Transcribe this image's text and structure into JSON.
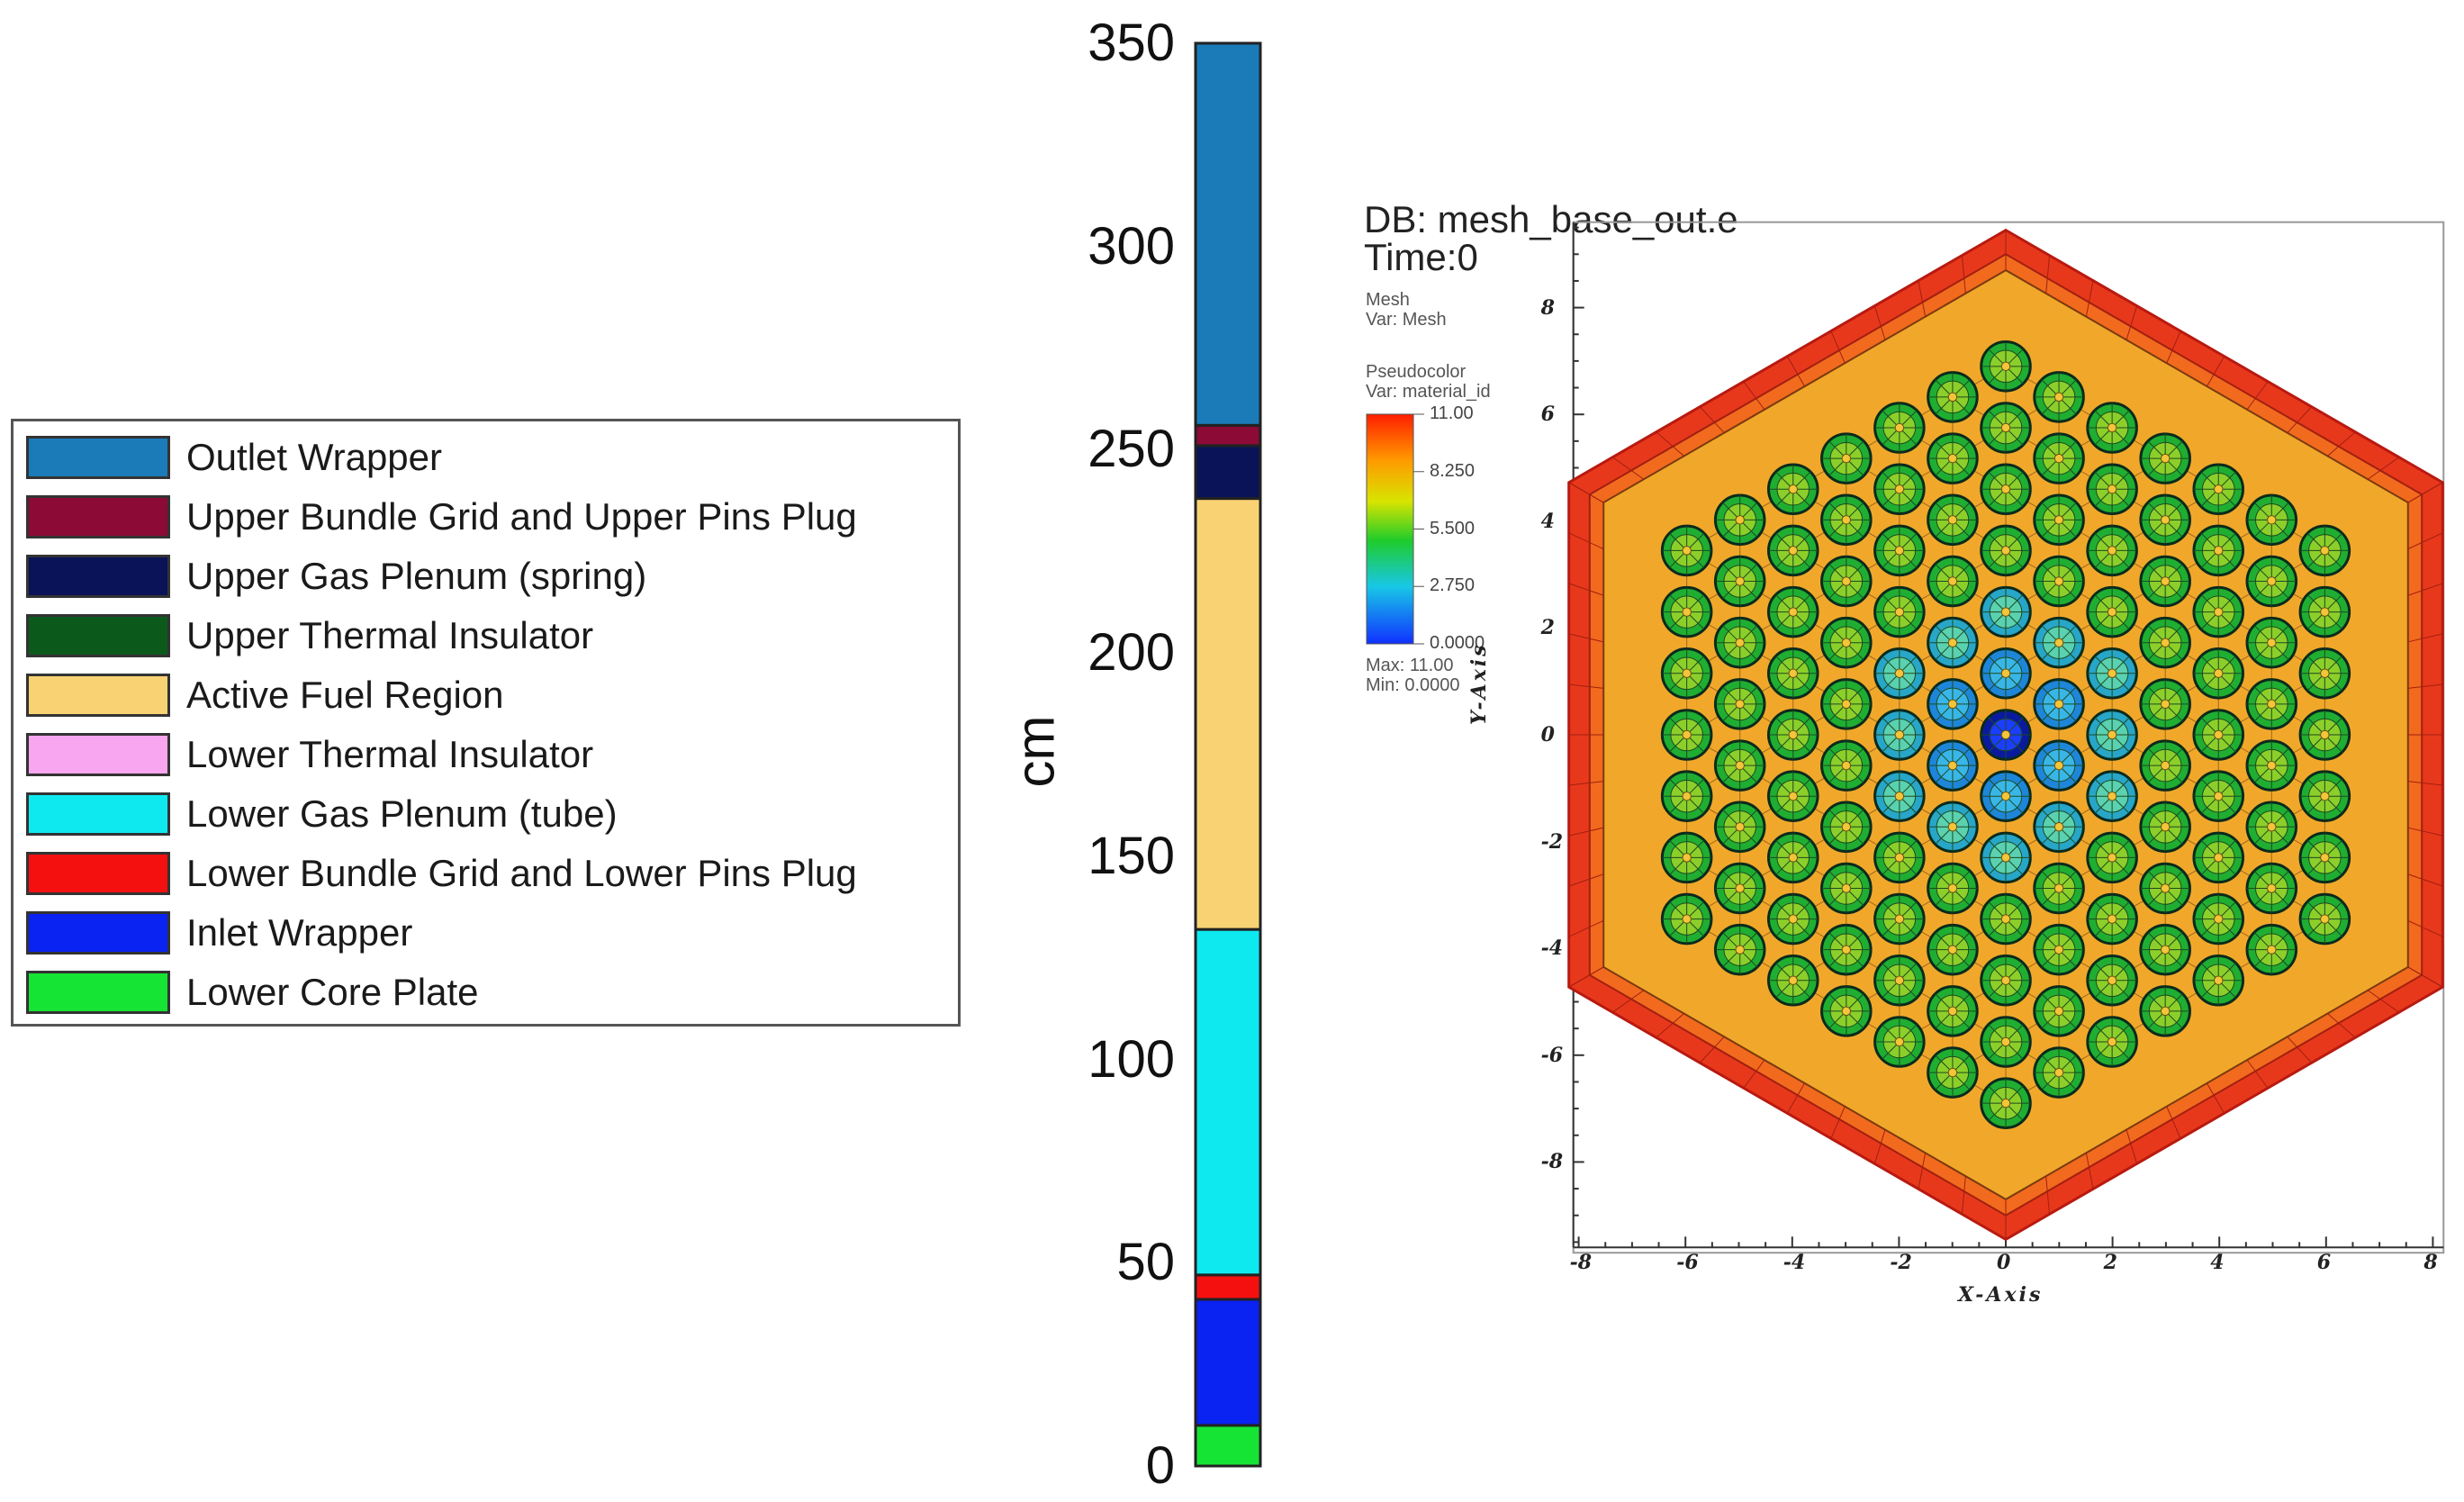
{
  "legend": {
    "items": [
      {
        "label": "Outlet Wrapper",
        "color": "#1a7bb8"
      },
      {
        "label": "Upper Bundle Grid and Upper Pins Plug",
        "color": "#8b0a36"
      },
      {
        "label": "Upper Gas Plenum (spring)",
        "color": "#0a1358"
      },
      {
        "label": "Upper Thermal Insulator",
        "color": "#0b5a1c"
      },
      {
        "label": "Active Fuel Region",
        "color": "#f9d274"
      },
      {
        "label": "Lower Thermal Insulator",
        "color": "#f9a6f0"
      },
      {
        "label": "Lower Gas Plenum (tube)",
        "color": "#0ee9f0"
      },
      {
        "label": "Lower Bundle Grid and Lower Pins Plug",
        "color": "#f51010"
      },
      {
        "label": "Inlet Wrapper",
        "color": "#0a22f2"
      },
      {
        "label": "Lower Core Plate",
        "color": "#16e434"
      }
    ]
  },
  "axial": {
    "unit": "cm",
    "range": [
      0,
      350
    ],
    "ticks": [
      "0",
      "50",
      "100",
      "150",
      "200",
      "250",
      "300",
      "350"
    ],
    "segments": [
      {
        "from": 0,
        "to": 10,
        "color": "#16e434"
      },
      {
        "from": 10,
        "to": 41,
        "color": "#0a22f2"
      },
      {
        "from": 41,
        "to": 47,
        "color": "#f51010"
      },
      {
        "from": 47,
        "to": 132,
        "color": "#0ee9f0"
      },
      {
        "from": 132,
        "to": 238,
        "color": "#f9d274"
      },
      {
        "from": 238,
        "to": 251,
        "color": "#0a1358"
      },
      {
        "from": 251,
        "to": 256,
        "color": "#8b0a36"
      },
      {
        "from": 256,
        "to": 350,
        "color": "#1a7bb8"
      }
    ]
  },
  "visit": {
    "db_line": "DB: mesh_base_out.e",
    "time_line": "Time:0",
    "mesh_label": "Mesh",
    "mesh_var": "Var: Mesh",
    "pc_label": "Pseudocolor",
    "pc_var": "Var: material_id",
    "cb_ticks": [
      "11.00",
      "8.250",
      "5.500",
      "2.750",
      "0.0000"
    ],
    "max_line": "Max: 11.00",
    "min_line": "Min: 0.0000",
    "x_axis_title": "X-Axis",
    "y_axis_title": "Y-Axis",
    "x_ticks": [
      "-8",
      "-6",
      "-4",
      "-2",
      "0",
      "2",
      "4",
      "6",
      "8"
    ],
    "y_ticks": [
      "8",
      "6",
      "4",
      "2",
      "0",
      "-2",
      "-4",
      "-6",
      "-8"
    ]
  }
}
